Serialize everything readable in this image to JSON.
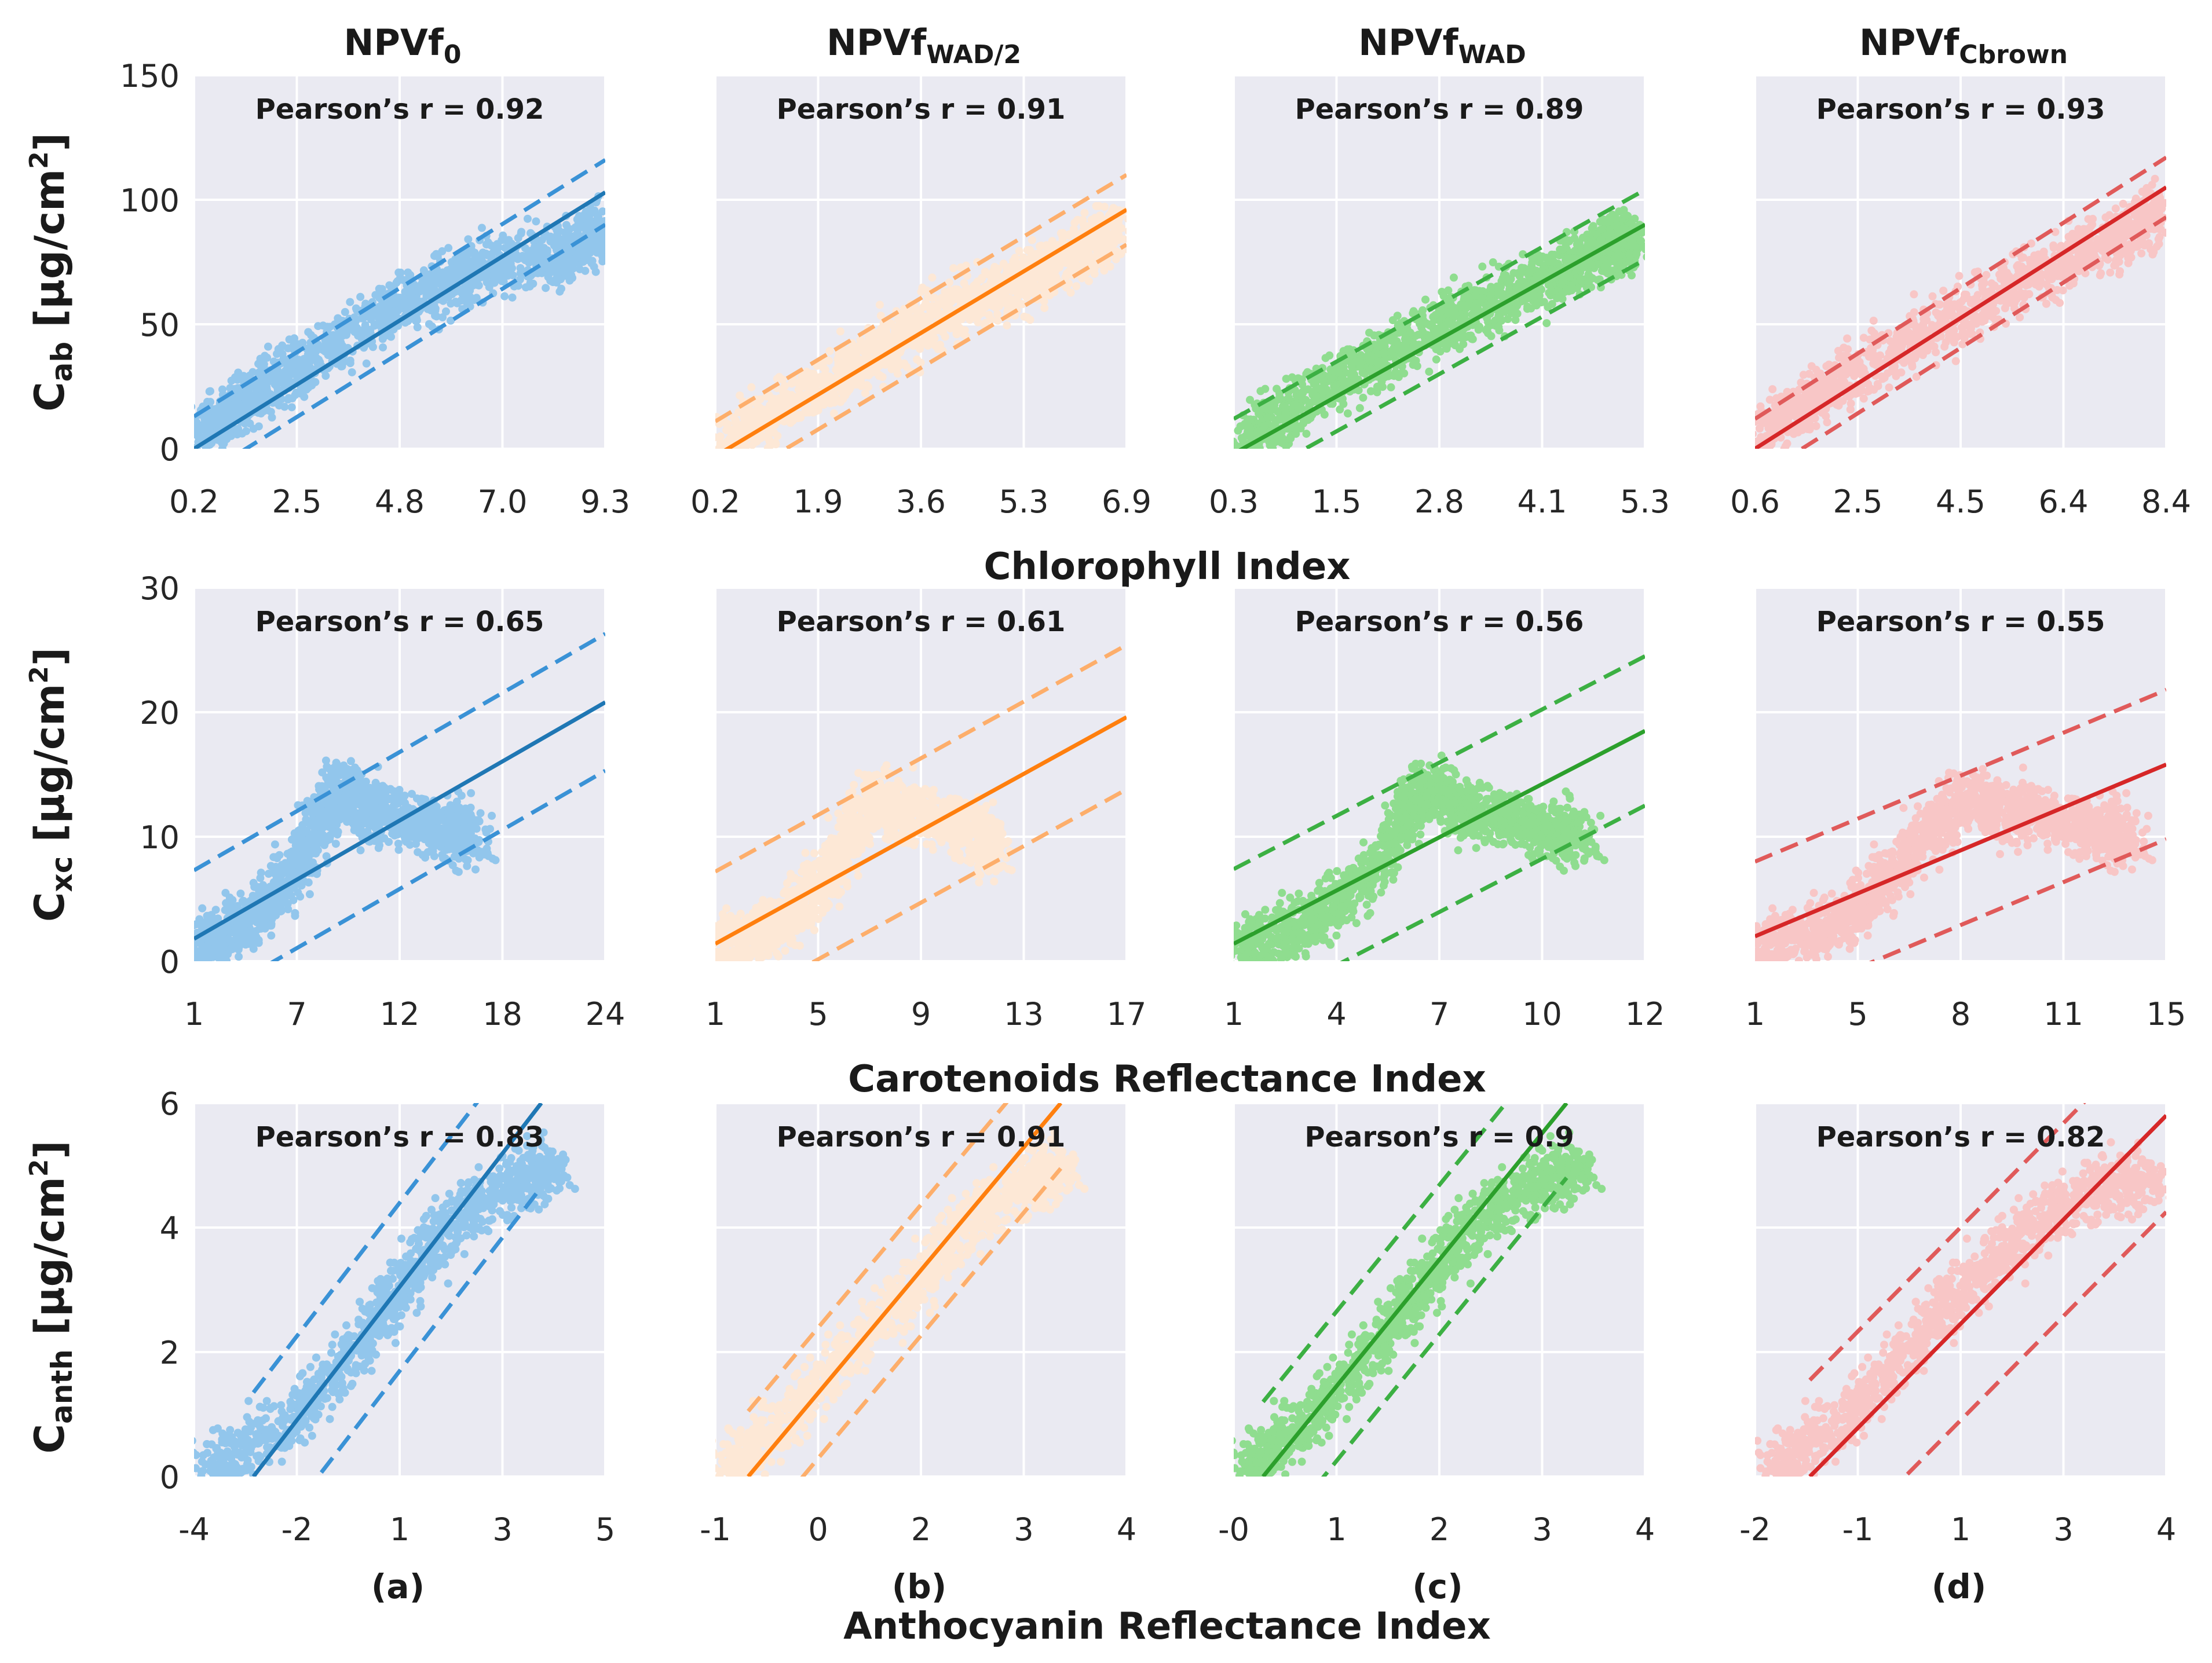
{
  "figure": {
    "column_titles": [
      {
        "base": "NPVf",
        "sub": "0"
      },
      {
        "base": "NPVf",
        "sub": "WAD/2"
      },
      {
        "base": "NPVf",
        "sub": "WAD"
      },
      {
        "base": "NPVf",
        "sub": "Cbrown"
      }
    ],
    "row_ylabels": [
      {
        "base": "C",
        "sub": "ab",
        "unit_pre": " [µg/cm",
        "sup": "2",
        "unit_post": "]"
      },
      {
        "base": "C",
        "sub": "xc",
        "unit_pre": " [µg/cm",
        "sup": "2",
        "unit_post": "]"
      },
      {
        "base": "C",
        "sub": "anth",
        "unit_pre": " [µg/cm",
        "sup": "2",
        "unit_post": "]"
      }
    ],
    "row_xlabels": [
      "Chlorophyll Index",
      "Carotenoids Reflectance Index",
      "Anthocyanin Reflectance Index"
    ],
    "panel_labels": [
      "(a)",
      "(b)",
      "(c)",
      "(d)"
    ],
    "colors": {
      "panel_bg": "#eaeaf2",
      "grid": "#ffffff",
      "columns": [
        {
          "scatter": "#92c6ec",
          "line": "#1f77b4",
          "band": "#3a92d6"
        },
        {
          "scatter": "#fde8d6",
          "line": "#ff7f0e",
          "band": "#fdae6b"
        },
        {
          "scatter": "#8fdd8f",
          "line": "#2ca02c",
          "band": "#3cb043"
        },
        {
          "scatter": "#f8c6c6",
          "line": "#d62728",
          "band": "#e05a5a"
        }
      ]
    }
  },
  "chart_data": [
    {
      "type": "scatter",
      "row": 0,
      "col": 0,
      "pearson": "Pearson’s r = 0.92",
      "xticks": [
        "0.2",
        "2.5",
        "4.8",
        "7.0",
        "9.3"
      ],
      "xlim": [
        0.2,
        9.3
      ],
      "yticks": [
        "0",
        "50",
        "100",
        "150"
      ],
      "ylim": [
        0,
        150
      ],
      "fit": [
        [
          0.2,
          0
        ],
        [
          9.3,
          103
        ]
      ],
      "band_offset": 13,
      "cloud": [
        [
          0.4,
          5
        ],
        [
          1.5,
          22
        ],
        [
          3,
          38
        ],
        [
          5,
          60
        ],
        [
          6.5,
          72
        ],
        [
          8.3,
          78
        ],
        [
          9.3,
          88
        ]
      ]
    },
    {
      "type": "scatter",
      "row": 0,
      "col": 1,
      "pearson": "Pearson’s r = 0.91",
      "xticks": [
        "0.2",
        "1.9",
        "3.6",
        "5.3",
        "6.9"
      ],
      "xlim": [
        0.2,
        6.9
      ],
      "yticks": [
        "0",
        "50",
        "100",
        "150"
      ],
      "ylim": [
        0,
        150
      ],
      "fit": [
        [
          0.2,
          -3
        ],
        [
          6.9,
          96
        ]
      ],
      "band_offset": 14,
      "cloud": [
        [
          0.4,
          4
        ],
        [
          1.5,
          20
        ],
        [
          2.8,
          38
        ],
        [
          4,
          55
        ],
        [
          5,
          65
        ],
        [
          6,
          78
        ],
        [
          6.8,
          90
        ]
      ]
    },
    {
      "type": "scatter",
      "row": 0,
      "col": 2,
      "pearson": "Pearson’s r = 0.89",
      "xticks": [
        "0.3",
        "1.5",
        "2.8",
        "4.1",
        "5.3"
      ],
      "xlim": [
        0.3,
        5.3
      ],
      "yticks": [
        "0",
        "50",
        "100",
        "150"
      ],
      "ylim": [
        0,
        150
      ],
      "fit": [
        [
          0.3,
          -2
        ],
        [
          5.3,
          90
        ]
      ],
      "band_offset": 14,
      "cloud": [
        [
          0.4,
          3
        ],
        [
          1.2,
          20
        ],
        [
          2.2,
          38
        ],
        [
          3.2,
          55
        ],
        [
          4.2,
          70
        ],
        [
          4.8,
          80
        ],
        [
          5.2,
          85
        ]
      ]
    },
    {
      "type": "scatter",
      "row": 0,
      "col": 3,
      "pearson": "Pearson’s r = 0.93",
      "xticks": [
        "0.6",
        "2.5",
        "4.5",
        "6.4",
        "8.4"
      ],
      "xlim": [
        0.6,
        8.4
      ],
      "yticks": [
        "0",
        "50",
        "100",
        "150"
      ],
      "ylim": [
        0,
        150
      ],
      "fit": [
        [
          0.6,
          0
        ],
        [
          8.4,
          105
        ]
      ],
      "band_offset": 12,
      "cloud": [
        [
          0.7,
          5
        ],
        [
          2,
          25
        ],
        [
          3.5,
          42
        ],
        [
          5,
          60
        ],
        [
          6.5,
          75
        ],
        [
          7.5,
          85
        ],
        [
          8.3,
          95
        ]
      ]
    },
    {
      "type": "scatter",
      "row": 1,
      "col": 0,
      "pearson": "Pearson’s r = 0.65",
      "xticks": [
        "1",
        "7",
        "12",
        "18",
        "24"
      ],
      "xlim": [
        1,
        24
      ],
      "yticks": [
        "0",
        "10",
        "20",
        "30"
      ],
      "ylim": [
        0,
        30
      ],
      "fit": [
        [
          1,
          1.8
        ],
        [
          24,
          20.8
        ]
      ],
      "band_offset": 5.5,
      "cloud": [
        [
          1,
          1
        ],
        [
          4,
          3
        ],
        [
          7,
          8
        ],
        [
          9,
          14
        ],
        [
          11,
          12
        ],
        [
          14,
          11
        ],
        [
          17,
          10
        ]
      ]
    },
    {
      "type": "scatter",
      "row": 1,
      "col": 1,
      "pearson": "Pearson’s r = 0.61",
      "xticks": [
        "1",
        "5",
        "9",
        "13",
        "17"
      ],
      "xlim": [
        1,
        17
      ],
      "yticks": [
        "0",
        "10",
        "20",
        "30"
      ],
      "ylim": [
        0,
        30
      ],
      "fit": [
        [
          1,
          1.4
        ],
        [
          17,
          19.6
        ]
      ],
      "band_offset": 5.8,
      "cloud": [
        [
          1,
          1
        ],
        [
          3.5,
          3
        ],
        [
          5.5,
          7
        ],
        [
          7,
          13
        ],
        [
          8.5,
          12
        ],
        [
          10.5,
          11
        ],
        [
          12,
          9
        ]
      ]
    },
    {
      "type": "scatter",
      "row": 1,
      "col": 2,
      "pearson": "Pearson’s r = 0.56",
      "xticks": [
        "1",
        "4",
        "7",
        "10",
        "12"
      ],
      "xlim": [
        1,
        12
      ],
      "yticks": [
        "0",
        "10",
        "20",
        "30"
      ],
      "ylim": [
        0,
        30
      ],
      "fit": [
        [
          1,
          1.4
        ],
        [
          12,
          18.5
        ]
      ],
      "band_offset": 6,
      "cloud": [
        [
          1,
          1
        ],
        [
          3,
          3
        ],
        [
          5,
          8
        ],
        [
          6,
          14
        ],
        [
          7.5,
          12
        ],
        [
          9,
          11
        ],
        [
          10.5,
          10
        ]
      ]
    },
    {
      "type": "scatter",
      "row": 1,
      "col": 3,
      "pearson": "Pearson’s r = 0.55",
      "xticks": [
        "1",
        "5",
        "8",
        "11",
        "15"
      ],
      "xlim": [
        1,
        15
      ],
      "yticks": [
        "0",
        "10",
        "20",
        "30"
      ],
      "ylim": [
        0,
        30
      ],
      "fit": [
        [
          1,
          2
        ],
        [
          15,
          15.8
        ]
      ],
      "band_offset": 6,
      "cloud": [
        [
          1,
          1
        ],
        [
          4,
          3
        ],
        [
          6,
          8
        ],
        [
          8,
          13
        ],
        [
          10,
          12
        ],
        [
          12,
          11
        ],
        [
          14,
          10
        ]
      ]
    },
    {
      "type": "scatter",
      "row": 2,
      "col": 0,
      "pearson": "Pearson’s r = 0.83",
      "xticks": [
        "-4",
        "-2",
        "1",
        "3",
        "5"
      ],
      "xlim": [
        -4,
        5
      ],
      "yticks": [
        "0",
        "2",
        "4",
        "6"
      ],
      "ylim": [
        0,
        6
      ],
      "fit": [
        [
          -2.7,
          0
        ],
        [
          3.6,
          6
        ]
      ],
      "band_offset": 1.35,
      "cloud": [
        [
          -3.8,
          0.1
        ],
        [
          -2,
          0.8
        ],
        [
          -0.5,
          2
        ],
        [
          0.5,
          3
        ],
        [
          1.5,
          4
        ],
        [
          3,
          4.8
        ],
        [
          4,
          5
        ]
      ]
    },
    {
      "type": "scatter",
      "row": 2,
      "col": 1,
      "pearson": "Pearson’s r = 0.91",
      "xticks": [
        "-1",
        "0",
        "2",
        "3",
        "4"
      ],
      "xlim": [
        -1,
        4
      ],
      "yticks": [
        "0",
        "2",
        "4",
        "6"
      ],
      "ylim": [
        0,
        6
      ],
      "fit": [
        [
          -0.6,
          0
        ],
        [
          3.2,
          6
        ]
      ],
      "band_offset": 1.05,
      "cloud": [
        [
          -0.9,
          0.1
        ],
        [
          -0.2,
          0.8
        ],
        [
          0.6,
          2
        ],
        [
          1.4,
          3
        ],
        [
          2,
          4
        ],
        [
          2.8,
          4.8
        ],
        [
          3.3,
          5
        ]
      ]
    },
    {
      "type": "scatter",
      "row": 2,
      "col": 2,
      "pearson": "Pearson’s r = 0.9",
      "xticks": [
        "-0",
        "1",
        "2",
        "3",
        "4"
      ],
      "xlim": [
        -0.2,
        4
      ],
      "yticks": [
        "0",
        "2",
        "4",
        "6"
      ],
      "ylim": [
        0,
        6
      ],
      "fit": [
        [
          0.1,
          0
        ],
        [
          3.2,
          6
        ]
      ],
      "band_offset": 1.2,
      "cloud": [
        [
          -0.1,
          0.1
        ],
        [
          0.5,
          0.8
        ],
        [
          1.2,
          2
        ],
        [
          1.7,
          3
        ],
        [
          2.2,
          4
        ],
        [
          2.9,
          4.8
        ],
        [
          3.4,
          5
        ]
      ]
    },
    {
      "type": "scatter",
      "row": 2,
      "col": 3,
      "pearson": "Pearson’s r = 0.82",
      "xticks": [
        "-2",
        "-1",
        "1",
        "3",
        "4"
      ],
      "xlim": [
        -2,
        4
      ],
      "yticks": [
        "0",
        "2",
        "4",
        "6"
      ],
      "ylim": [
        0,
        6
      ],
      "fit": [
        [
          -1.2,
          0
        ],
        [
          4,
          5.8
        ]
      ],
      "band_offset": 1.55,
      "cloud": [
        [
          -1.8,
          0.1
        ],
        [
          -0.8,
          0.8
        ],
        [
          0.2,
          2
        ],
        [
          1,
          3
        ],
        [
          2,
          4
        ],
        [
          3,
          4.7
        ],
        [
          3.9,
          4.8
        ]
      ]
    }
  ]
}
